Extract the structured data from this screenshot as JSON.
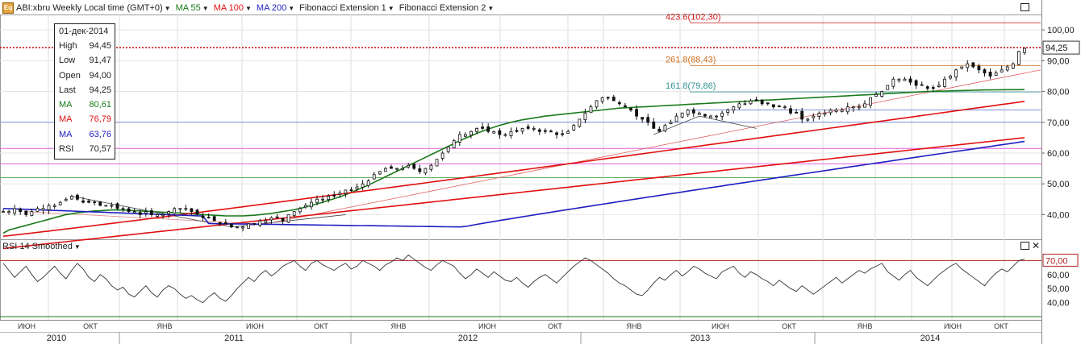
{
  "header": {
    "symbol": "ABI:xbru Weekly Local time (GMT+0)",
    "symbol_icon": "eq-icon",
    "indicators": [
      {
        "label": "MA 55",
        "color": "#1a7a1a"
      },
      {
        "label": "MA 100",
        "color": "#e01010"
      },
      {
        "label": "MA 200",
        "color": "#1f1fc0"
      },
      {
        "label": "Fibonacci Extension 1",
        "color": "#222222"
      },
      {
        "label": "Fibonacci Extension 2",
        "color": "#222222"
      }
    ]
  },
  "ohlc_panel": {
    "date": "01-дек-2014",
    "rows": [
      {
        "label": "High",
        "value": "94,45",
        "color": "#222222"
      },
      {
        "label": "Low",
        "value": "91,47",
        "color": "#222222"
      },
      {
        "label": "Open",
        "value": "94,00",
        "color": "#222222"
      },
      {
        "label": "Last",
        "value": "94,25",
        "color": "#222222"
      },
      {
        "label": "MA",
        "value": "80,61",
        "color": "#1a7a1a"
      },
      {
        "label": "MA",
        "value": "76,79",
        "color": "#e01010"
      },
      {
        "label": "MA",
        "value": "63,76",
        "color": "#1f1fc0"
      },
      {
        "label": "RSI",
        "value": "70,57",
        "color": "#222222"
      }
    ]
  },
  "rsi_panel": {
    "title": "RSI 14 Smoothed",
    "level_label": "70,00",
    "level": 70
  },
  "price_axis": {
    "ticks": [
      "100,00",
      "90,00",
      "80,00",
      "70,00",
      "60,00",
      "50,00",
      "40,00"
    ],
    "last_price_label": "94,25"
  },
  "rsi_axis": {
    "ticks": [
      "60,00",
      "50,00",
      "40,00"
    ]
  },
  "time_axis": {
    "months": [
      "ИЮН",
      "ОКТ",
      "ЯНВ",
      "ИЮН",
      "ОКТ",
      "ЯНВ",
      "ИЮН",
      "ОКТ",
      "ЯНВ",
      "ИЮН",
      "ОКТ",
      "ЯНВ",
      "ИЮН",
      "ОКТ"
    ],
    "years": [
      "2010",
      "2011",
      "2012",
      "2013",
      "2014"
    ]
  },
  "chart_data": {
    "type": "candlestick",
    "x_range": [
      "2010-03",
      "2014-12"
    ],
    "ylim": [
      32,
      105
    ],
    "price": [
      41,
      41,
      42,
      41,
      40,
      41,
      42,
      42,
      43,
      43,
      44,
      45,
      46,
      45,
      44,
      44,
      44,
      43,
      43,
      43,
      42,
      42,
      41,
      41,
      40,
      41,
      40,
      40,
      40,
      41,
      42,
      42,
      42,
      41,
      40,
      39,
      39,
      38,
      37,
      37,
      36,
      36,
      36,
      37,
      37,
      38,
      38,
      39,
      39,
      38,
      40,
      41,
      42,
      43,
      44,
      45,
      45,
      46,
      46,
      47,
      48,
      48,
      49,
      50,
      51,
      53,
      54,
      55,
      55,
      55,
      55,
      56,
      55,
      54,
      55,
      56,
      58,
      60,
      62,
      64,
      66,
      66,
      67,
      68,
      68,
      67,
      67,
      66,
      66,
      67,
      67,
      68,
      68,
      68,
      67,
      67,
      67,
      66,
      66,
      67,
      69,
      71,
      73,
      75,
      77,
      78,
      78,
      77,
      76,
      75,
      74,
      72,
      71,
      70,
      68,
      67,
      69,
      70,
      72,
      73,
      74,
      73,
      73,
      72,
      72,
      72,
      73,
      74,
      75,
      76,
      76,
      77,
      77,
      76,
      76,
      75,
      75,
      75,
      73,
      73,
      71,
      71,
      72,
      73,
      73,
      74,
      74,
      74,
      75,
      75,
      75,
      76,
      78,
      79,
      80,
      82,
      84,
      84,
      84,
      83,
      82,
      82,
      81,
      81,
      82,
      84,
      85,
      87,
      88,
      89,
      88,
      87,
      86,
      85,
      86,
      87,
      88,
      89,
      93,
      94
    ],
    "ma55": [
      34,
      35,
      35.5,
      36,
      36.5,
      37,
      37.5,
      38,
      38.5,
      39,
      39.5,
      40,
      40.3,
      40.6,
      40.8,
      41,
      41.2,
      41.3,
      41.4,
      41.5,
      41.5,
      41.5,
      41.4,
      41.3,
      41.2,
      41.1,
      41,
      40.9,
      40.8,
      40.7,
      40.6,
      40.5,
      40.4,
      40.3,
      40.2,
      40,
      39.9,
      39.8,
      39.7,
      39.6,
      39.6,
      39.6,
      39.6,
      39.7,
      39.8,
      40,
      40.2,
      40.4,
      40.7,
      41,
      41.3,
      41.6,
      42,
      42.5,
      43,
      43.5,
      44,
      44.6,
      45.2,
      45.8,
      46.5,
      47.2,
      48,
      48.8,
      49.6,
      50.5,
      51.4,
      52.3,
      53.2,
      54.1,
      55,
      55.9,
      56.8,
      57.7,
      58.6,
      59.5,
      60.4,
      61.3,
      62.2,
      63.1,
      64,
      64.8,
      65.6,
      66.4,
      67.1,
      67.8,
      68.4,
      69,
      69.5,
      70,
      70.4,
      70.8,
      71.1,
      71.4,
      71.7,
      72,
      72.2,
      72.4,
      72.6,
      72.8,
      73,
      73.2,
      73.4,
      73.6,
      73.8,
      74,
      74.2,
      74.4,
      74.6,
      74.7,
      74.8,
      74.9,
      75,
      75.1,
      75.2,
      75.3,
      75.4,
      75.5,
      75.6,
      75.7,
      75.8,
      75.9,
      76,
      76.1,
      76.2,
      76.3,
      76.4,
      76.5,
      76.6,
      76.7,
      76.8,
      76.9,
      77,
      77.1,
      77.2,
      77.3,
      77.4,
      77.5,
      77.6,
      77.7,
      77.8,
      77.9,
      78,
      78.1,
      78.2,
      78.3,
      78.4,
      78.5,
      78.6,
      78.7,
      78.8,
      78.9,
      79,
      79.1,
      79.2,
      79.3,
      79.4,
      79.5,
      79.6,
      79.7,
      79.8,
      79.9,
      80,
      80.05,
      80.1,
      80.15,
      80.2,
      80.25,
      80.3,
      80.35,
      80.4,
      80.45,
      80.5,
      80.52,
      80.54,
      80.56,
      80.58,
      80.59,
      80.6,
      80.61
    ],
    "ma100": [
      32,
      76.79
    ],
    "ma200": [
      32,
      63.76
    ],
    "rsi": [
      68,
      63,
      58,
      62,
      66,
      60,
      55,
      58,
      62,
      66,
      61,
      57,
      63,
      68,
      64,
      58,
      55,
      60,
      57,
      52,
      49,
      51,
      46,
      44,
      48,
      52,
      47,
      44,
      49,
      52,
      50,
      46,
      43,
      45,
      42,
      40,
      44,
      47,
      43,
      41,
      45,
      50,
      54,
      58,
      55,
      60,
      63,
      59,
      62,
      66,
      68,
      70,
      66,
      63,
      68,
      70,
      67,
      65,
      63,
      66,
      68,
      64,
      66,
      70,
      68,
      66,
      63,
      67,
      69,
      72,
      70,
      74,
      71,
      68,
      65,
      63,
      67,
      70,
      68,
      66,
      61,
      57,
      60,
      64,
      61,
      58,
      62,
      59,
      56,
      55,
      58,
      54,
      51,
      55,
      58,
      60,
      57,
      54,
      58,
      62,
      66,
      69,
      72,
      70,
      67,
      64,
      61,
      57,
      54,
      52,
      49,
      46,
      45,
      49,
      54,
      58,
      56,
      60,
      63,
      59,
      62,
      66,
      64,
      61,
      59,
      57,
      62,
      64,
      66,
      61,
      58,
      62,
      60,
      57,
      55,
      52,
      56,
      53,
      50,
      48,
      52,
      49,
      46,
      49,
      52,
      55,
      58,
      54,
      57,
      60,
      63,
      61,
      64,
      66,
      68,
      62,
      59,
      56,
      60,
      63,
      58,
      55,
      52,
      56,
      60,
      63,
      66,
      68,
      64,
      61,
      58,
      55,
      52,
      57,
      61,
      64,
      62,
      66,
      70,
      71
    ]
  }
}
